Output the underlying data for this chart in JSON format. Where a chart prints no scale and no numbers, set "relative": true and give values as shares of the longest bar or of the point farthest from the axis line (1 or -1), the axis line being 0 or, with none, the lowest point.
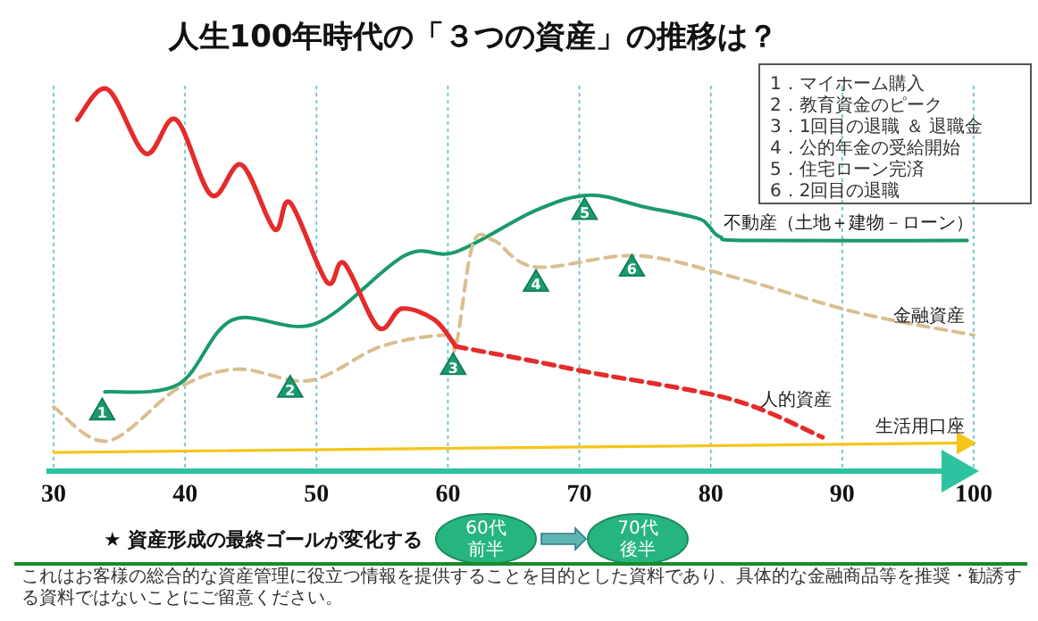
{
  "chart_data": {
    "type": "line",
    "title": "人生100年時代の「３つの資産」の推移は？",
    "relative": true,
    "xlim": [
      30,
      100
    ],
    "xticks": [
      30,
      40,
      50,
      60,
      70,
      80,
      90,
      100
    ],
    "grid": "x",
    "legend": false,
    "marker": "none",
    "series": [
      {
        "name": "不動産（土地＋建物－ローン）",
        "color": "#1a9a6c",
        "line_style": "solid",
        "x": [
          33.9,
          39.5,
          43.6,
          49.9,
          56.7,
          60.6,
          66.7,
          70.8,
          74.8,
          78.9,
          79.8,
          80.7,
          83.0,
          99.5
        ],
        "values": [
          0.2,
          0.22,
          0.39,
          0.38,
          0.56,
          0.57,
          0.68,
          0.72,
          0.69,
          0.66,
          0.64,
          0.61,
          0.6,
          0.6
        ]
      },
      {
        "name": "金融資産",
        "color": "#d9bf8f",
        "line_style": "dashed",
        "x": [
          30,
          34.1,
          39.5,
          44.0,
          49.5,
          54.9,
          59.9,
          60.6,
          61.9,
          63.5,
          66.7,
          74.4,
          82.1,
          91.1,
          100
        ],
        "values": [
          0.16,
          0.07,
          0.21,
          0.26,
          0.23,
          0.32,
          0.35,
          0.32,
          0.59,
          0.6,
          0.53,
          0.56,
          0.5,
          0.41,
          0.35
        ]
      },
      {
        "color": "#e52b2b",
        "line_style": "solid",
        "x": [
          31.8,
          34.1,
          37.0,
          39.3,
          42.0,
          44.3,
          46.8,
          48.0,
          50.8,
          52.1,
          54.7,
          56.5,
          59.0,
          60.6
        ],
        "values": [
          0.92,
          1.0,
          0.83,
          0.92,
          0.72,
          0.8,
          0.63,
          0.7,
          0.49,
          0.54,
          0.37,
          0.42,
          0.39,
          0.32
        ]
      },
      {
        "name": "人的資産",
        "color": "#e52b2b",
        "line_style": "dashed",
        "x": [
          60.6,
          66.7,
          71.0,
          81.6,
          88.5
        ],
        "values": [
          0.32,
          0.28,
          0.25,
          0.18,
          0.08
        ]
      },
      {
        "name": "生活用口座",
        "color": "#f5c518",
        "line_style": "solid",
        "x": [
          30,
          100
        ],
        "values": [
          0.04,
          0.065
        ]
      }
    ],
    "annotations": [
      "1．マイホーム購入",
      "2．教育資金のピーク",
      "3．1回目の退職 ＆ 退職金",
      "4．公的年金の受給開始",
      "5．住宅ローン完済",
      "6．2回目の退職",
      "★ 資産形成の最終ゴールが変化する",
      "60代",
      "前半",
      "70代",
      "後半",
      "これはお客様の総合的な資産管理に役立つ情報を提供することを目的とした資料であり、具体的な金融商品等を推奨・勧誘する資料ではないことにご留意ください。",
      {
        "text": "1",
        "x": 33.7,
        "y": 0.15
      },
      {
        "text": "2",
        "x": 48.0,
        "y": 0.21
      },
      {
        "text": "3",
        "x": 60.4,
        "y": 0.27
      },
      {
        "text": "4",
        "x": 66.7,
        "y": 0.49
      },
      {
        "text": "5",
        "x": 70.4,
        "y": 0.68
      },
      {
        "text": "6",
        "x": 74.0,
        "y": 0.53
      }
    ]
  }
}
